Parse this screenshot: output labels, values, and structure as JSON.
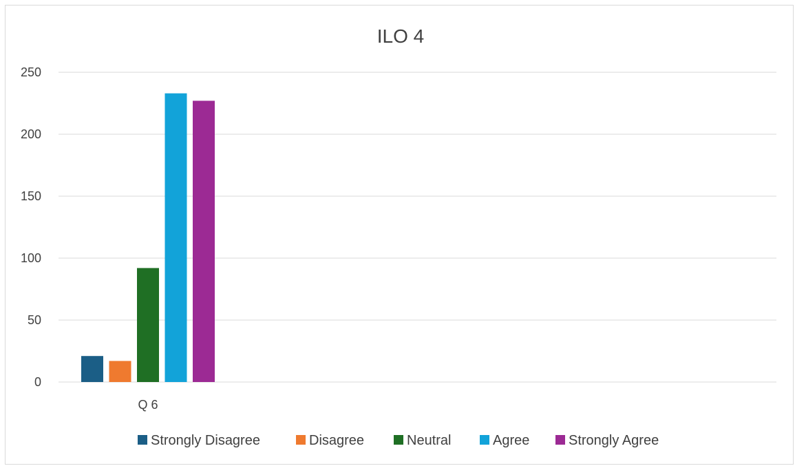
{
  "chart_data": {
    "type": "bar",
    "title": "ILO 4",
    "categories": [
      "Q 6"
    ],
    "series": [
      {
        "name": "Strongly Disagree",
        "values": [
          21
        ],
        "color": "#1b5e86"
      },
      {
        "name": "Disagree",
        "values": [
          17
        ],
        "color": "#ef7a2f"
      },
      {
        "name": "Neutral",
        "values": [
          92
        ],
        "color": "#1f6f24"
      },
      {
        "name": "Agree",
        "values": [
          233
        ],
        "color": "#12a3d9"
      },
      {
        "name": "Strongly Agree",
        "values": [
          227
        ],
        "color": "#9c2a94"
      }
    ],
    "ylim": [
      0,
      250
    ],
    "yticks": [
      0,
      50,
      100,
      150,
      200,
      250
    ],
    "grid": true,
    "legend": "bottom"
  }
}
